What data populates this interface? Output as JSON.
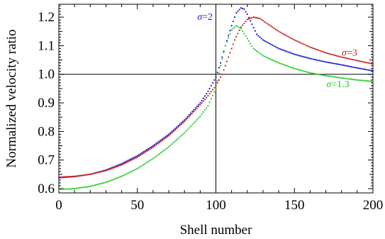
{
  "chart_data": {
    "type": "scatter",
    "xlabel": "Shell number",
    "ylabel": "Normalized velocity ratio",
    "xlim": [
      0,
      200
    ],
    "ylim": [
      0.585,
      1.245
    ],
    "xticks": [
      0,
      50,
      100,
      150,
      200
    ],
    "yticks": [
      0.6,
      0.7,
      0.8,
      0.9,
      1.0,
      1.1,
      1.2
    ],
    "ytick_labels": [
      "0.6",
      "0.7",
      "0.8",
      "0.9",
      "1.0",
      "1.1",
      "1.2"
    ],
    "reference_lines": {
      "x": 100,
      "y": 1.0
    },
    "grid": false,
    "series": [
      {
        "name": "σ=2",
        "label_parts": [
          "σ",
          "=2"
        ],
        "color": "#1a1acc",
        "x": [
          0,
          10,
          20,
          30,
          40,
          50,
          60,
          70,
          80,
          90,
          95,
          100,
          103,
          106,
          110,
          113,
          116,
          118,
          120,
          123,
          126,
          130,
          140,
          150,
          160,
          170,
          180,
          190,
          200
        ],
        "y": [
          0.638,
          0.642,
          0.65,
          0.665,
          0.687,
          0.715,
          0.75,
          0.79,
          0.84,
          0.9,
          0.94,
          0.99,
          1.04,
          1.1,
          1.17,
          1.215,
          1.232,
          1.228,
          1.21,
          1.175,
          1.14,
          1.12,
          1.09,
          1.07,
          1.055,
          1.043,
          1.033,
          1.022,
          1.012
        ]
      },
      {
        "name": "σ=3",
        "label_parts": [
          "σ",
          "=3"
        ],
        "color": "#cc1a1a",
        "x": [
          0,
          10,
          20,
          30,
          40,
          50,
          60,
          70,
          80,
          90,
          95,
          100,
          104,
          108,
          112,
          116,
          120,
          124,
          128,
          132,
          140,
          150,
          160,
          170,
          180,
          190,
          200
        ],
        "y": [
          0.64,
          0.643,
          0.65,
          0.663,
          0.683,
          0.71,
          0.745,
          0.785,
          0.835,
          0.893,
          0.925,
          0.96,
          1.0,
          1.06,
          1.12,
          1.165,
          1.192,
          1.2,
          1.195,
          1.18,
          1.15,
          1.12,
          1.095,
          1.075,
          1.06,
          1.048,
          1.036
        ]
      },
      {
        "name": "σ=1.3",
        "label_parts": [
          "σ",
          "=1.3"
        ],
        "color": "#22cc22",
        "x": [
          0,
          10,
          20,
          30,
          40,
          50,
          60,
          70,
          80,
          90,
          95,
          100,
          103,
          106,
          110,
          113,
          116,
          120,
          124,
          130,
          140,
          150,
          160,
          170,
          180,
          190,
          200
        ],
        "y": [
          0.597,
          0.6,
          0.608,
          0.622,
          0.643,
          0.67,
          0.705,
          0.746,
          0.795,
          0.853,
          0.89,
          0.95,
          1.03,
          1.1,
          1.155,
          1.17,
          1.16,
          1.125,
          1.09,
          1.065,
          1.04,
          1.02,
          1.005,
          0.995,
          0.987,
          0.98,
          0.975
        ]
      }
    ],
    "annotations": [
      {
        "series_index": 0,
        "x": 98,
        "y": 1.19
      },
      {
        "series_index": 1,
        "x": 190,
        "y": 1.065
      },
      {
        "series_index": 2,
        "x": 185,
        "y": 0.955
      }
    ]
  }
}
